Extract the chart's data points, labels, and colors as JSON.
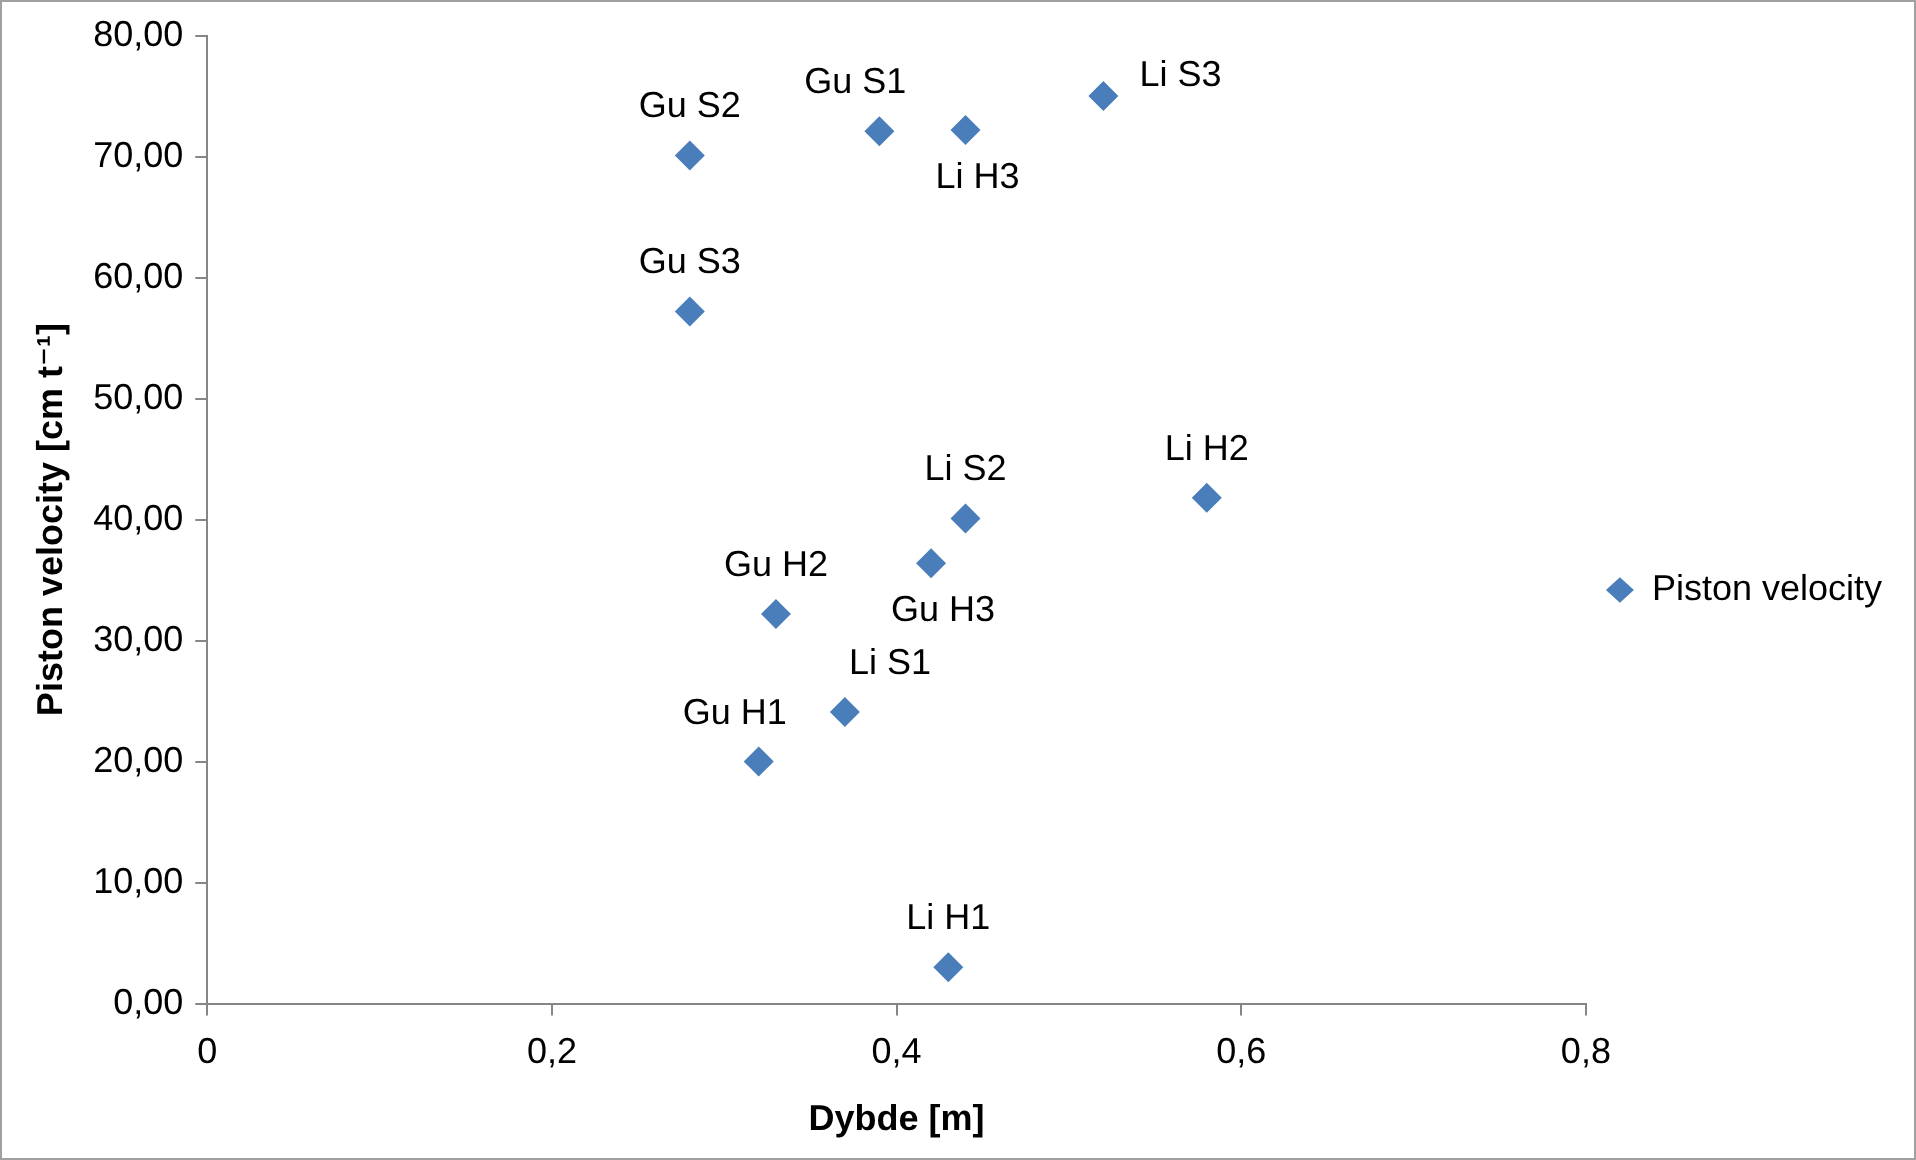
{
  "chart_data": {
    "type": "scatter",
    "xlabel": "Dybde [m]",
    "ylabel": "Piston velocity [cm t⁻¹]",
    "series": [
      {
        "name": "Piston velocity",
        "color": "#4a7ebb",
        "x": [
          0.28,
          0.28,
          0.39,
          0.44,
          0.52,
          0.58,
          0.44,
          0.42,
          0.33,
          0.37,
          0.32,
          0.43
        ],
        "values": [
          70.1,
          57.2,
          72.1,
          72.2,
          75.0,
          41.8,
          40.1,
          36.4,
          32.2,
          24.1,
          20.0,
          3.0
        ]
      }
    ],
    "annotations": [
      {
        "text": "Gu S2",
        "x": 0.28,
        "y": 70.1
      },
      {
        "text": "Gu S3",
        "x": 0.28,
        "y": 57.2
      },
      {
        "text": "Gu S1",
        "x": 0.39,
        "y": 72.1
      },
      {
        "text": "Li H3",
        "x": 0.44,
        "y": 72.2
      },
      {
        "text": "Li S3",
        "x": 0.52,
        "y": 75.0
      },
      {
        "text": "Li H2",
        "x": 0.58,
        "y": 41.8
      },
      {
        "text": "Li S2",
        "x": 0.44,
        "y": 40.1
      },
      {
        "text": "Gu H3",
        "x": 0.42,
        "y": 36.4
      },
      {
        "text": "Gu H2",
        "x": 0.33,
        "y": 32.2
      },
      {
        "text": "Li S1",
        "x": 0.37,
        "y": 24.1
      },
      {
        "text": "Gu H1",
        "x": 0.32,
        "y": 20.0
      },
      {
        "text": "Li H1",
        "x": 0.43,
        "y": 3.0
      }
    ],
    "xlim": [
      0,
      0.8
    ],
    "xticks": [
      0,
      {
        "value": 0.2,
        "label": "0,2"
      },
      {
        "value": 0.4,
        "label": "0,4"
      },
      {
        "value": 0.6,
        "label": "0,6"
      },
      {
        "value": 0.8,
        "label": "0,8"
      }
    ],
    "ylim": [
      0,
      80
    ],
    "yticks": [
      {
        "value": 0,
        "label": "0,00"
      },
      {
        "value": 10,
        "label": "10,00"
      },
      {
        "value": 20,
        "label": "20,00"
      },
      {
        "value": 30,
        "label": "30,00"
      },
      {
        "value": 40,
        "label": "40,00"
      },
      {
        "value": 50,
        "label": "50,00"
      },
      {
        "value": 60,
        "label": "60,00"
      },
      {
        "value": 70,
        "label": "70,00"
      },
      {
        "value": 80,
        "label": "80,00"
      }
    ],
    "grid": false,
    "legend": "right",
    "marker": "diamond"
  }
}
